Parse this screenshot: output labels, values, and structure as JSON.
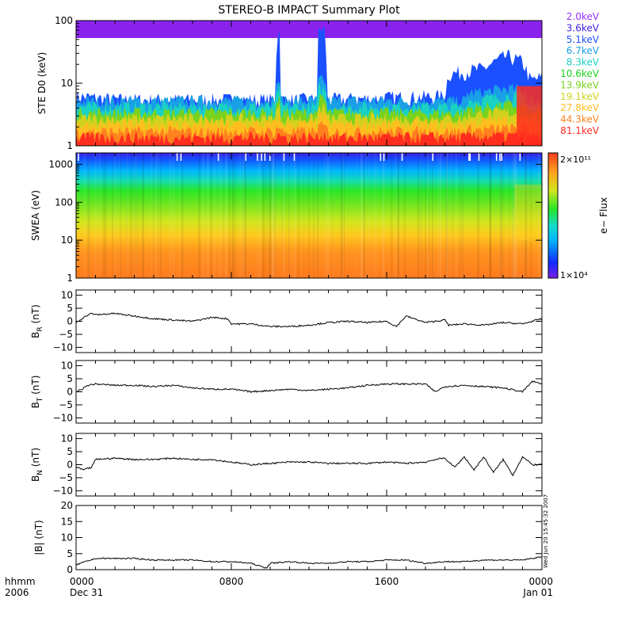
{
  "title": "STEREO-B IMPACT Summary Plot",
  "time_axis": {
    "row1_label": "hhmm",
    "row2_label": "2006",
    "ticks": [
      {
        "hour": 0,
        "label": "0000",
        "date": "Dec 31"
      },
      {
        "hour": 8,
        "label": "0800",
        "date": ""
      },
      {
        "hour": 16,
        "label": "1600",
        "date": ""
      },
      {
        "hour": 24,
        "label": "0000",
        "date": "Jan 01"
      }
    ]
  },
  "timestamp": "Wed Jun 20 15:45:32 2007",
  "colors": {
    "ste_background": "#8a22ee",
    "mag_line": "#000000"
  },
  "chart_data": [
    {
      "type": "line",
      "panel": "ste",
      "ylabel": "STE D0 (keV)",
      "yscale": "log",
      "ylim": [
        1,
        100
      ],
      "y_ticks": [
        {
          "value": 1,
          "label": "1"
        },
        {
          "value": 10,
          "label": "10"
        },
        {
          "value": 100,
          "label": "100"
        }
      ],
      "legend_position": "right",
      "series": [
        {
          "name": "2.0keV",
          "color": "#9b30ff"
        },
        {
          "name": "3.6keV",
          "color": "#3c1ee6"
        },
        {
          "name": "5.1keV",
          "color": "#1a50ff"
        },
        {
          "name": "6.7keV",
          "color": "#19a0e6"
        },
        {
          "name": "8.3keV",
          "color": "#1ad2c3"
        },
        {
          "name": "10.6keV",
          "color": "#1ed21e"
        },
        {
          "name": "13.9keV",
          "color": "#78d21e"
        },
        {
          "name": "19.1keV",
          "color": "#d2d21e"
        },
        {
          "name": "27.8keV",
          "color": "#ffbe1e"
        },
        {
          "name": "44.3keV",
          "color": "#ff821e"
        },
        {
          "name": "81.1keV",
          "color": "#ff2d1e"
        }
      ],
      "profile": [
        {
          "hour": 0,
          "noise_top_keV": 8
        },
        {
          "hour": 2,
          "noise_top_keV": 7
        },
        {
          "hour": 10.3,
          "noise_top_keV": 7
        },
        {
          "hour": 10.35,
          "noise_top_keV": 90
        },
        {
          "hour": 10.5,
          "noise_top_keV": 85
        },
        {
          "hour": 10.55,
          "noise_top_keV": 7
        },
        {
          "hour": 12.4,
          "noise_top_keV": 7
        },
        {
          "hour": 12.5,
          "noise_top_keV": 95
        },
        {
          "hour": 12.85,
          "noise_top_keV": 90
        },
        {
          "hour": 12.9,
          "noise_top_keV": 7
        },
        {
          "hour": 19,
          "noise_top_keV": 8
        },
        {
          "hour": 19.2,
          "noise_top_keV": 18
        },
        {
          "hour": 21,
          "noise_top_keV": 22
        },
        {
          "hour": 22.2,
          "noise_top_keV": 35
        },
        {
          "hour": 23,
          "noise_top_keV": 28
        },
        {
          "hour": 23.4,
          "noise_top_keV": 14
        },
        {
          "hour": 24,
          "noise_top_keV": 16
        }
      ]
    },
    {
      "type": "heatmap",
      "panel": "swea",
      "ylabel": "SWEA (eV)",
      "yscale": "log",
      "ylim": [
        1,
        2000
      ],
      "y_ticks": [
        {
          "value": 1,
          "label": "1"
        },
        {
          "value": 10,
          "label": "10"
        },
        {
          "value": 100,
          "label": "100"
        },
        {
          "value": 1000,
          "label": "1000"
        }
      ],
      "colorbar": {
        "label": "e− Flux",
        "min_label": "1×10⁴",
        "max_label": "2×10¹¹",
        "min": 10000,
        "max": 200000000000
      }
    },
    {
      "type": "line",
      "panel": "br",
      "ylabel": "B_R (nT)",
      "ylim": [
        -12,
        12
      ],
      "y_ticks": [
        {
          "value": -10,
          "label": "−10"
        },
        {
          "value": -5,
          "label": "−5"
        },
        {
          "value": 0,
          "label": "0"
        },
        {
          "value": 5,
          "label": "5"
        },
        {
          "value": 10,
          "label": "10"
        }
      ],
      "series": [
        {
          "x": [
            0,
            0.2,
            0.5,
            0.8,
            1,
            2,
            3,
            4,
            5,
            6,
            7,
            7.8,
            8,
            9,
            10,
            11,
            12,
            13,
            14,
            15,
            16,
            16.5,
            17,
            18,
            19,
            19.2,
            20,
            21,
            22,
            23,
            24
          ],
          "y": [
            -0.5,
            0.5,
            2,
            3,
            2.5,
            3,
            2,
            1,
            0.5,
            0,
            1.5,
            1,
            -1,
            -1,
            -2,
            -2,
            -1.5,
            -0.5,
            0,
            -0.5,
            0,
            -2,
            2,
            -0.5,
            0.5,
            -1.5,
            -1,
            -1.5,
            -0.5,
            -1,
            1
          ]
        }
      ]
    },
    {
      "type": "line",
      "panel": "bt",
      "ylabel": "B_T (nT)",
      "ylim": [
        -12,
        12
      ],
      "y_ticks": [
        {
          "value": -10,
          "label": "−10"
        },
        {
          "value": -5,
          "label": "−5"
        },
        {
          "value": 0,
          "label": "0"
        },
        {
          "value": 5,
          "label": "5"
        },
        {
          "value": 10,
          "label": "10"
        }
      ],
      "series": [
        {
          "x": [
            0,
            0.3,
            0.6,
            1,
            2,
            3,
            4,
            5,
            6,
            7,
            8,
            9,
            10,
            11,
            12,
            13,
            14,
            15,
            16,
            17,
            18,
            18.5,
            19,
            20,
            21,
            22,
            23,
            23.5,
            24
          ],
          "y": [
            0,
            1,
            2.5,
            3,
            2.5,
            2.5,
            2,
            2.5,
            1.5,
            1,
            1,
            0,
            0.5,
            1,
            0.5,
            1,
            1.5,
            2.5,
            3,
            3,
            3,
            0,
            2,
            2.5,
            2,
            1.5,
            0,
            4,
            3
          ]
        }
      ]
    },
    {
      "type": "line",
      "panel": "bn",
      "ylabel": "B_N (nT)",
      "ylim": [
        -12,
        12
      ],
      "y_ticks": [
        {
          "value": -10,
          "label": "−10"
        },
        {
          "value": -5,
          "label": "−5"
        },
        {
          "value": 0,
          "label": "0"
        },
        {
          "value": 5,
          "label": "5"
        },
        {
          "value": 10,
          "label": "10"
        }
      ],
      "series": [
        {
          "x": [
            0,
            0.4,
            0.8,
            1,
            2,
            3,
            4,
            5,
            6,
            7,
            8,
            9,
            10,
            11,
            12,
            13,
            14,
            15,
            16,
            17,
            18,
            18.5,
            19,
            19.5,
            20,
            20.5,
            21,
            21.5,
            22,
            22.5,
            23,
            23.5,
            24
          ],
          "y": [
            -1,
            -2,
            -1,
            2,
            2.5,
            2,
            2,
            2.5,
            2,
            2,
            1,
            0,
            0.5,
            1,
            1,
            0.5,
            0.5,
            0.5,
            1,
            0.5,
            1,
            2,
            2.5,
            -1,
            3,
            -2,
            3,
            -3,
            2,
            -4,
            3,
            0,
            0
          ]
        }
      ]
    },
    {
      "type": "line",
      "panel": "babs",
      "ylabel": "|B| (nT)",
      "ylim": [
        0,
        20
      ],
      "y_ticks": [
        {
          "value": 0,
          "label": "0"
        },
        {
          "value": 5,
          "label": "5"
        },
        {
          "value": 10,
          "label": "10"
        },
        {
          "value": 15,
          "label": "15"
        },
        {
          "value": 20,
          "label": "20"
        }
      ],
      "series": [
        {
          "x": [
            0,
            0.5,
            1,
            2,
            3,
            4,
            5,
            6,
            7,
            8,
            9,
            9.8,
            10,
            11,
            12,
            13,
            14,
            15,
            16,
            17,
            18,
            19,
            20,
            21,
            22,
            23,
            24
          ],
          "y": [
            1.5,
            2.5,
            3.5,
            3.5,
            3.5,
            3,
            3,
            3,
            2.5,
            2.5,
            2,
            0.5,
            2,
            2.5,
            2,
            2,
            2.5,
            2.5,
            3,
            3,
            2,
            2.5,
            2.5,
            3,
            3,
            3,
            4
          ]
        }
      ]
    }
  ]
}
